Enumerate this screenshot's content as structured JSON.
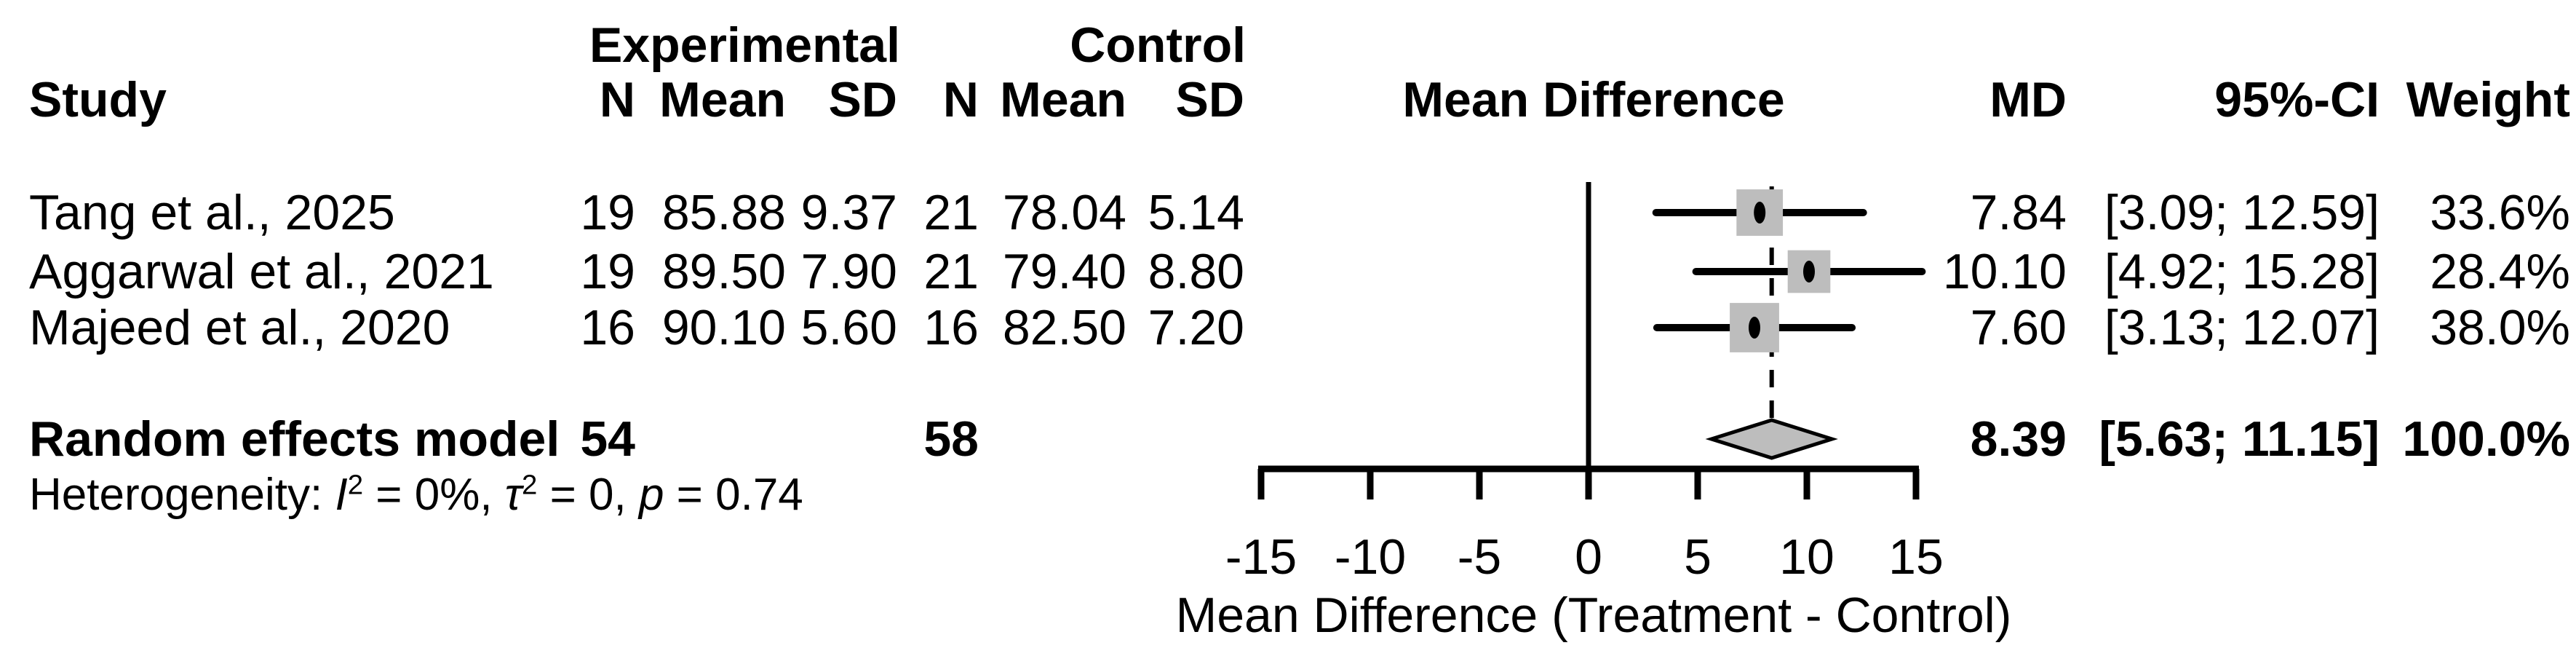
{
  "colors": {
    "text": "#000000",
    "line": "#000000",
    "square_fill": "#bdbdbd",
    "diamond_fill": "#bdbdbd"
  },
  "columns": {
    "study": "Study",
    "group1": "Experimental",
    "group2": "Control",
    "n": "N",
    "mean": "Mean",
    "sd": "SD",
    "effect": "Mean Difference",
    "md": "MD",
    "ci": "95%-CI",
    "weight": "Weight"
  },
  "display": {
    "rows": [
      {
        "study": "Tang et al., 2025",
        "n1": "19",
        "mean1": "85.88",
        "sd1": "9.37",
        "n2": "21",
        "mean2": "78.04",
        "sd2": "5.14",
        "md": "7.84",
        "ci": "[3.09; 12.59]",
        "weight": "33.6%"
      },
      {
        "study": "Aggarwal et al., 2021",
        "n1": "19",
        "mean1": "89.50",
        "sd1": "7.90",
        "n2": "21",
        "mean2": "79.40",
        "sd2": "8.80",
        "md": "10.10",
        "ci": "[4.92; 15.28]",
        "weight": "28.4%"
      },
      {
        "study": "Majeed et al., 2020",
        "n1": "16",
        "mean1": "90.10",
        "sd1": "5.60",
        "n2": "16",
        "mean2": "82.50",
        "sd2": "7.20",
        "md": "7.60",
        "ci": "[3.13; 12.07]",
        "weight": "38.0%"
      }
    ],
    "summary_row": {
      "label": "Random effects model",
      "n1": "54",
      "n2": "58",
      "md": "8.39",
      "ci": "[5.63; 11.15]",
      "weight": "100.0%"
    },
    "het": {
      "label": "Heterogeneity: ",
      "i": "I",
      "sup2": "2",
      "after_i": " = 0%, ",
      "tau": "τ",
      "after_tau": " = 0, ",
      "p": "p",
      "after_p": " = 0.74"
    }
  },
  "chart_data": {
    "type": "forest",
    "effect_measure": "Mean Difference",
    "model": "Random effects model",
    "studies": [
      {
        "label": "Tang et al., 2025",
        "exp_n": 19,
        "exp_mean": 85.88,
        "exp_sd": 9.37,
        "ctrl_n": 21,
        "ctrl_mean": 78.04,
        "ctrl_sd": 5.14,
        "md": 7.84,
        "ci_low": 3.09,
        "ci_high": 12.59,
        "weight_pct": 33.6
      },
      {
        "label": "Aggarwal et al., 2021",
        "exp_n": 19,
        "exp_mean": 89.5,
        "exp_sd": 7.9,
        "ctrl_n": 21,
        "ctrl_mean": 79.4,
        "ctrl_sd": 8.8,
        "md": 10.1,
        "ci_low": 4.92,
        "ci_high": 15.28,
        "weight_pct": 28.4
      },
      {
        "label": "Majeed et al., 2020",
        "exp_n": 16,
        "exp_mean": 90.1,
        "exp_sd": 5.6,
        "ctrl_n": 16,
        "ctrl_mean": 82.5,
        "ctrl_sd": 7.2,
        "md": 7.6,
        "ci_low": 3.13,
        "ci_high": 12.07,
        "weight_pct": 38.0
      }
    ],
    "summary": {
      "exp_n": 54,
      "ctrl_n": 58,
      "md": 8.39,
      "ci_low": 5.63,
      "ci_high": 11.15,
      "weight_pct": 100.0
    },
    "heterogeneity": {
      "I2": "0%",
      "tau2": "0",
      "p": "0.74"
    },
    "xaxis": {
      "range": [
        -15,
        15
      ],
      "ticks": [
        -15,
        -10,
        -5,
        0,
        5,
        10,
        15
      ],
      "tick_labels": [
        "-15",
        "-10",
        "-5",
        "0",
        "5",
        "10",
        "15"
      ],
      "label": "Mean Difference (Treatment - Control)"
    }
  }
}
